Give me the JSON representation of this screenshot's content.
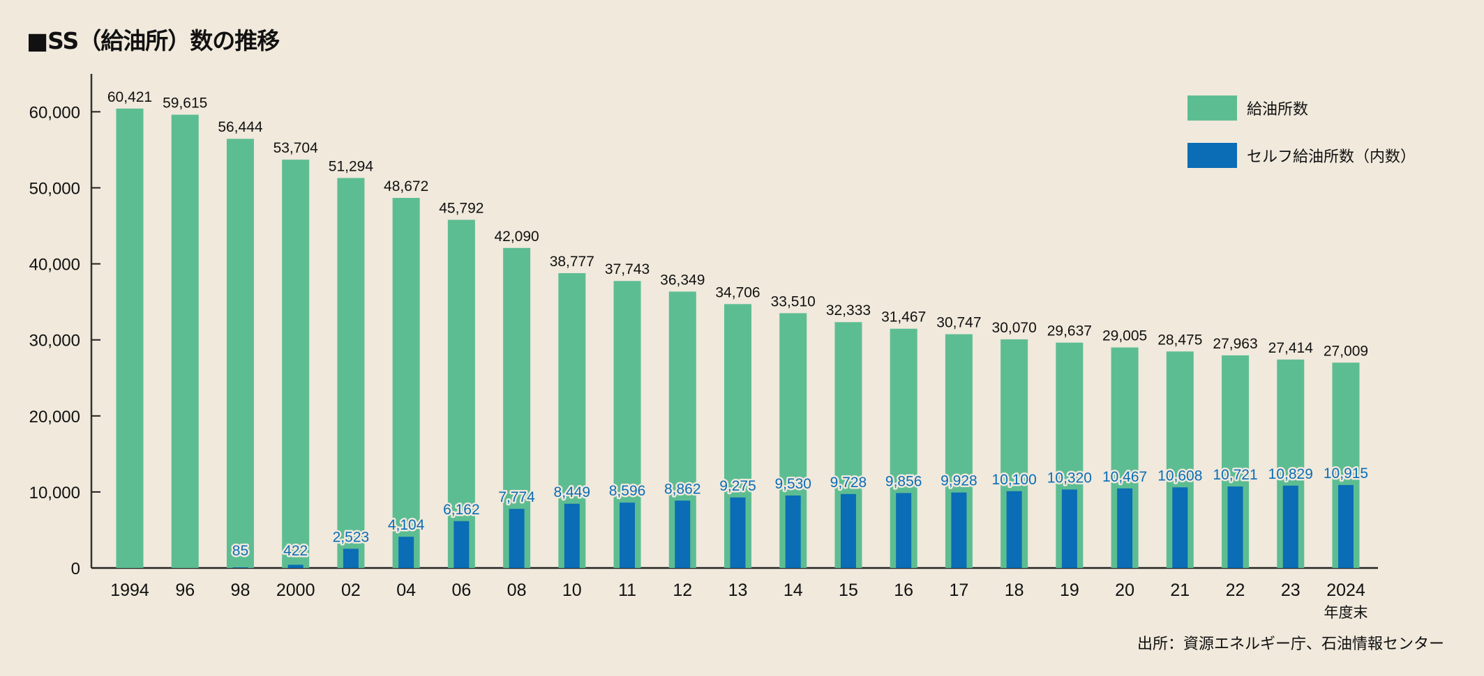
{
  "title": "■SS（給油所）数の推移",
  "source": "出所：資源エネルギー庁、石油情報センター",
  "colors": {
    "total": "#5dbd92",
    "self": "#0a6db5",
    "background": "#f0e9dc",
    "axis": "#333333"
  },
  "chart_data": {
    "type": "bar",
    "title": "■SS（給油所）数の推移",
    "xlabel": "年度末",
    "ylabel": "",
    "ylim": [
      0,
      65000
    ],
    "yticks": [
      0,
      10000,
      20000,
      30000,
      40000,
      50000,
      60000
    ],
    "ytick_labels": [
      "0",
      "10,000",
      "20,000",
      "30,000",
      "40,000",
      "50,000",
      "60,000"
    ],
    "grid": false,
    "legend_position": "top-right",
    "categories": [
      "1994",
      "96",
      "98",
      "2000",
      "02",
      "04",
      "06",
      "08",
      "10",
      "11",
      "12",
      "13",
      "14",
      "15",
      "16",
      "17",
      "18",
      "19",
      "20",
      "21",
      "22",
      "23",
      "2024"
    ],
    "x_suffix_label": "年度末",
    "series": [
      {
        "name": "給油所数",
        "values": [
          60421,
          59615,
          56444,
          53704,
          51294,
          48672,
          45792,
          42090,
          38777,
          37743,
          36349,
          34706,
          33510,
          32333,
          31467,
          30747,
          30070,
          29637,
          29005,
          28475,
          27963,
          27414,
          27009
        ],
        "labels": [
          "60,421",
          "59,615",
          "56,444",
          "53,704",
          "51,294",
          "48,672",
          "45,792",
          "42,090",
          "38,777",
          "37,743",
          "36,349",
          "34,706",
          "33,510",
          "32,333",
          "31,467",
          "30,747",
          "30,070",
          "29,637",
          "29,005",
          "28,475",
          "27,963",
          "27,414",
          "27,009"
        ]
      },
      {
        "name": "セルフ給油所数（内数）",
        "values": [
          null,
          null,
          85,
          422,
          2523,
          4104,
          6162,
          7774,
          8449,
          8596,
          8862,
          9275,
          9530,
          9728,
          9856,
          9928,
          10100,
          10320,
          10467,
          10608,
          10721,
          10829,
          10915
        ],
        "labels": [
          "",
          "",
          "85",
          "422",
          "2,523",
          "4,104",
          "6,162",
          "7,774",
          "8,449",
          "8,596",
          "8,862",
          "9,275",
          "9,530",
          "9,728",
          "9,856",
          "9,928",
          "10,100",
          "10,320",
          "10,467",
          "10,608",
          "10,721",
          "10,829",
          "10,915"
        ]
      }
    ]
  }
}
